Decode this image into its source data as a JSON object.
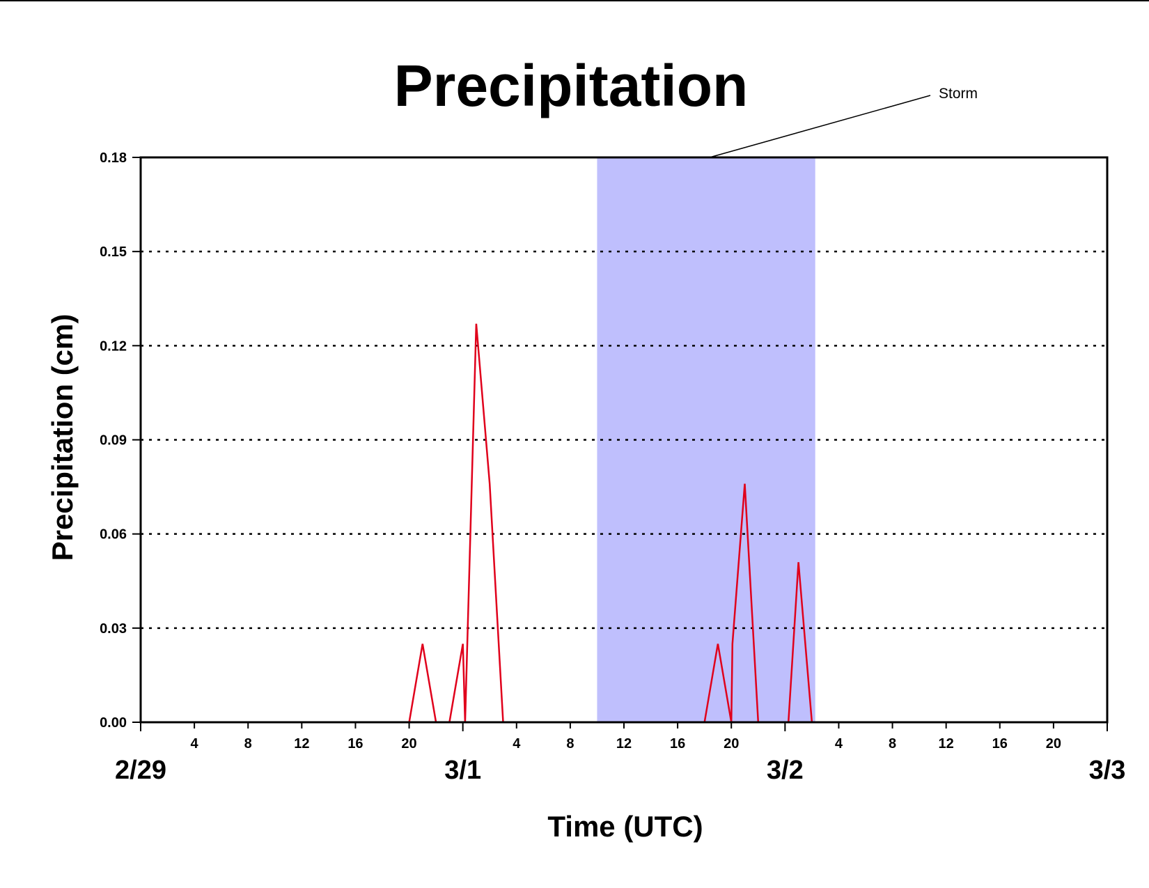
{
  "chart_data": {
    "type": "line",
    "title": "Precipitation",
    "xlabel": "Time (UTC)",
    "ylabel": "Precipitation (cm)",
    "x_unit": "UTC",
    "xlim": [
      "2/29 00:00",
      "3/3 00:00"
    ],
    "ylim": [
      0,
      0.18
    ],
    "y_ticks": [
      "0.00",
      "0.03",
      "0.06",
      "0.09",
      "0.12",
      "0.15",
      "0.18"
    ],
    "x_hour_ticks": [
      "4",
      "8",
      "12",
      "16",
      "20",
      "4",
      "8",
      "12",
      "16",
      "20",
      "4",
      "8",
      "12",
      "16",
      "20"
    ],
    "x_day_labels": [
      "2/29",
      "3/1",
      "3/2",
      "3/3"
    ],
    "grid": "horizontal dotted",
    "line_color": "#e0001b",
    "shade_color": "#bfbffd",
    "annotation": {
      "text": "Storm",
      "start": "3/1 10:00",
      "end": "3/2 02:15"
    },
    "series": [
      {
        "x": [
          "2/29 00:00",
          "2/29 20:00",
          "2/29 21:00",
          "2/29 22:00",
          "2/29 23:00",
          "3/1 00:00",
          "3/1 00:10",
          "3/1 01:00",
          "3/1 02:00",
          "3/1 03:00",
          "3/1 04:00",
          "3/2 00:00"
        ],
        "values": [
          0,
          0,
          0.025,
          0,
          0,
          0.025,
          0,
          0.127,
          0.076,
          0,
          0,
          0
        ]
      },
      {
        "x": [
          "3/2 00:00",
          "3/1 18:00",
          "3/1 19:00",
          "3/1 20:00",
          "3/1 20:05",
          "3/1 21:00",
          "3/1 22:00",
          "3/1 23:00",
          "3/2 00:15",
          "3/2 01:00",
          "3/2 02:00",
          "3/3 00:00"
        ],
        "values": [
          0,
          0,
          0.025,
          0,
          0.025,
          0.076,
          0,
          0,
          0,
          0.051,
          0,
          0
        ]
      }
    ]
  }
}
